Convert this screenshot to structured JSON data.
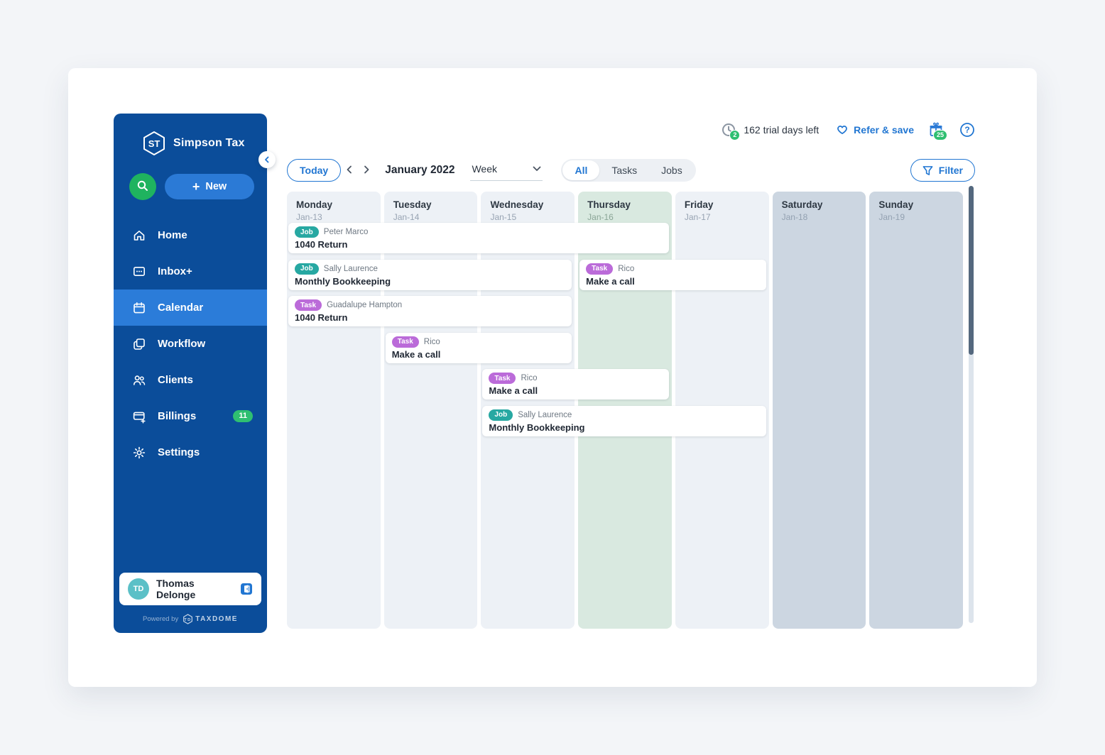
{
  "brand": {
    "initials": "ST",
    "name": "Simpson Tax",
    "powered_by": "Powered by",
    "powered_initials": "TD",
    "powered_brand": "TAXDOME"
  },
  "sidebar": {
    "new_button": "New",
    "items": [
      {
        "label": "Home",
        "icon": "home",
        "active": false,
        "badge": null
      },
      {
        "label": "Inbox+",
        "icon": "inbox",
        "active": false,
        "badge": null
      },
      {
        "label": "Calendar",
        "icon": "calendar",
        "active": true,
        "badge": null
      },
      {
        "label": "Workflow",
        "icon": "workflow",
        "active": false,
        "badge": null
      },
      {
        "label": "Clients",
        "icon": "clients",
        "active": false,
        "badge": null
      },
      {
        "label": "Billings",
        "icon": "billings",
        "active": false,
        "badge": "11"
      },
      {
        "label": "Settings",
        "icon": "settings",
        "active": false,
        "badge": null
      }
    ],
    "user": {
      "initials": "TD",
      "name": "Thomas Delonge"
    }
  },
  "header": {
    "trial_icon_badge": "2",
    "trial_text": "162 trial days left",
    "refer_label": "Refer & save",
    "gift_badge": "25"
  },
  "toolbar": {
    "today_label": "Today",
    "month_label": "January 2022",
    "view_value": "Week",
    "segments": [
      "All",
      "Tasks",
      "Jobs"
    ],
    "active_segment": "All",
    "filter_label": "Filter"
  },
  "calendar": {
    "days": [
      {
        "name": "Monday",
        "date": "Jan-13",
        "type": "weekday"
      },
      {
        "name": "Tuesday",
        "date": "Jan-14",
        "type": "weekday"
      },
      {
        "name": "Wednesday",
        "date": "Jan-15",
        "type": "weekday"
      },
      {
        "name": "Thursday",
        "date": "Jan-16",
        "type": "today"
      },
      {
        "name": "Friday",
        "date": "Jan-17",
        "type": "weekday"
      },
      {
        "name": "Saturday",
        "date": "Jan-18",
        "type": "weekend"
      },
      {
        "name": "Sunday",
        "date": "Jan-19",
        "type": "weekend"
      }
    ],
    "events": [
      {
        "badge": "Job",
        "person": "Peter Marco",
        "title": "1040 Return",
        "col": 1,
        "span": 4,
        "row": 1
      },
      {
        "badge": "Job",
        "person": "Sally Laurence",
        "title": "Monthly Bookkeeping",
        "col": 1,
        "span": 3,
        "row": 2
      },
      {
        "badge": "Task",
        "person": "Rico",
        "title": "Make a call",
        "col": 4,
        "span": 2,
        "row": 2
      },
      {
        "badge": "Task",
        "person": "Guadalupe Hampton",
        "title": "1040 Return",
        "col": 1,
        "span": 3,
        "row": 3
      },
      {
        "badge": "Task",
        "person": "Rico",
        "title": "Make a call",
        "col": 2,
        "span": 2,
        "row": 4
      },
      {
        "badge": "Task",
        "person": "Rico",
        "title": "Make a call",
        "col": 3,
        "span": 2,
        "row": 5
      },
      {
        "badge": "Job",
        "person": "Sally Laurence",
        "title": "Monthly Bookkeeping",
        "col": 3,
        "span": 3,
        "row": 6
      }
    ]
  },
  "colors": {
    "accent": "#2176d2",
    "sidebar": "#0b4d9a",
    "sidebar_active": "#2b7cd9",
    "search_green": "#1fb35f",
    "badge_green": "#2fbf71",
    "job_badge": "#27a8a2",
    "task_badge": "#bb6bd9",
    "today_column": "#d9e9e0",
    "weekday_column": "#edf1f6",
    "weekend_column": "#ccd6e1",
    "scrollbar_thumb": "#54687e"
  }
}
